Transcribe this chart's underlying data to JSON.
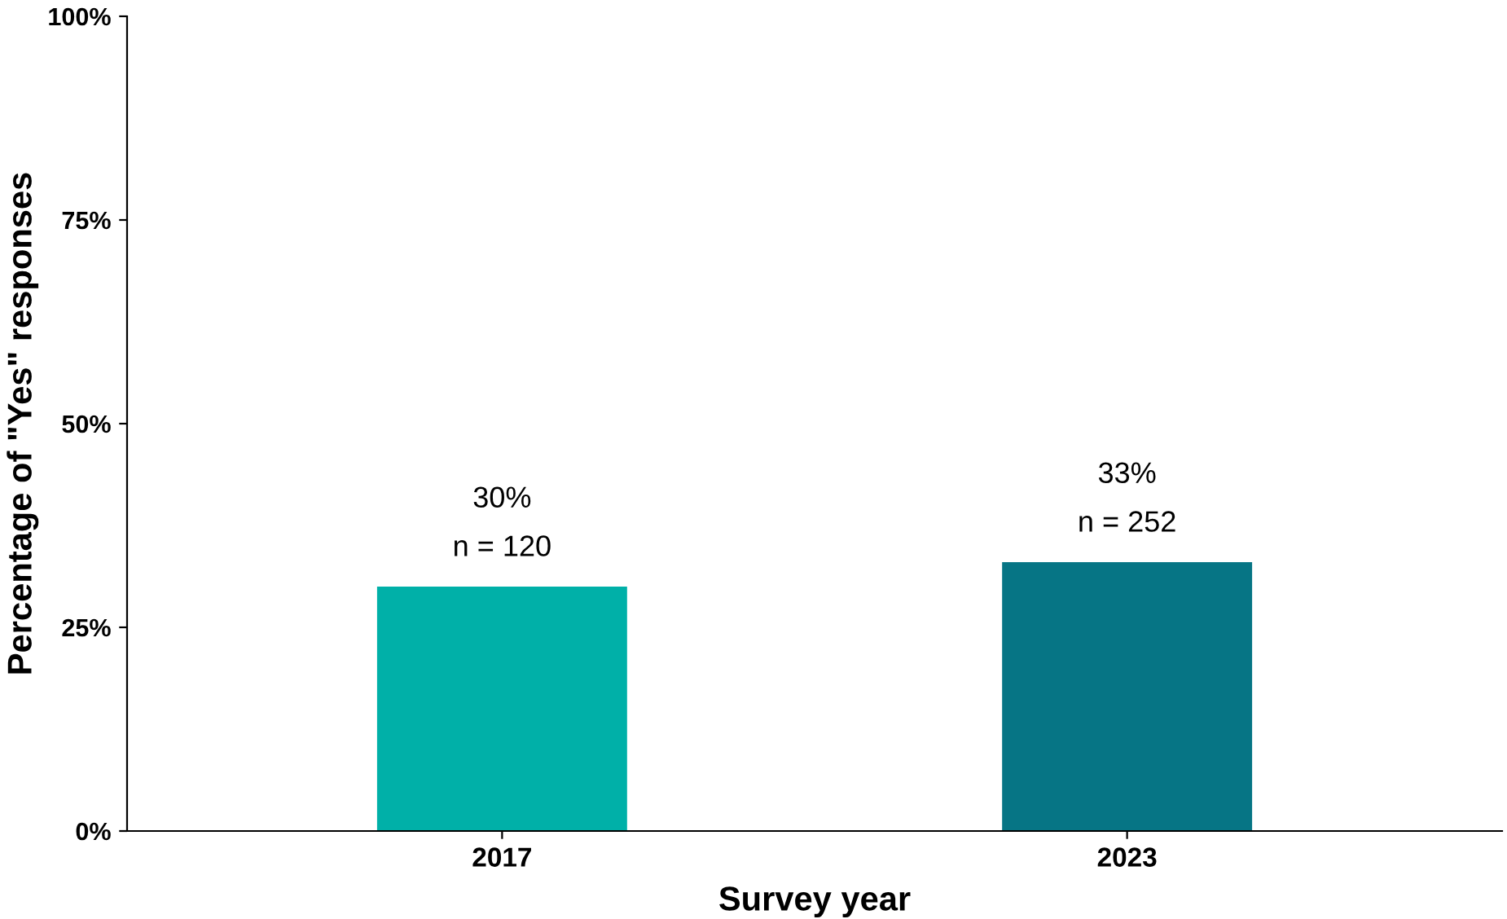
{
  "chart_data": {
    "type": "bar",
    "xlabel": "Survey year",
    "ylabel": "Percentage of \"Yes\" responses",
    "categories": [
      "2017",
      "2023"
    ],
    "values": [
      30,
      33
    ],
    "colors": [
      "#00b0a8",
      "#067585"
    ],
    "value_labels": [
      "30%\nn = 120",
      "33%\nn = 252"
    ],
    "ylim": [
      0,
      100
    ],
    "yticks": [
      {
        "value": 0,
        "label": "0%"
      },
      {
        "value": 25,
        "label": "25%"
      },
      {
        "value": 50,
        "label": "50%"
      },
      {
        "value": 75,
        "label": "75%"
      },
      {
        "value": 100,
        "label": "100%"
      }
    ],
    "grid": false,
    "legend": false
  }
}
